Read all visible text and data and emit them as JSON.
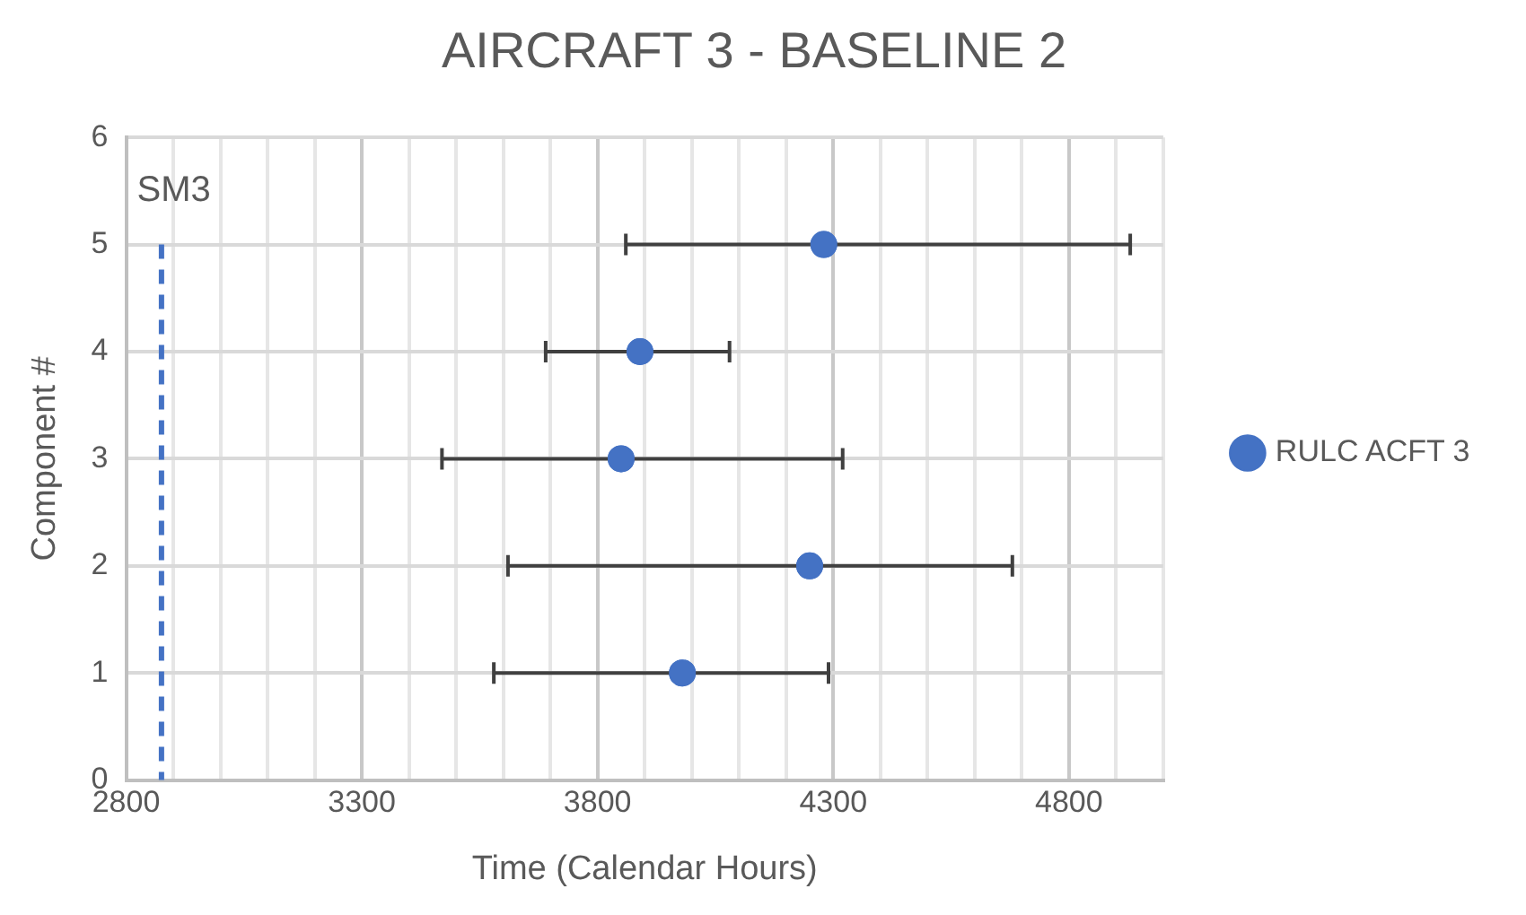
{
  "chart_data": {
    "type": "scatter",
    "title": "AIRCRAFT 3 - BASELINE 2",
    "xlabel": "Time (Calendar Hours)",
    "ylabel": "Component #",
    "series": [
      {
        "name": "RULC ACFT 3",
        "color": "#4472c4",
        "x": [
          3980,
          4250,
          3850,
          3890,
          4280
        ],
        "values": [
          1,
          2,
          3,
          4,
          5
        ],
        "xerrors": [
          [
            3580,
            4290
          ],
          [
            3610,
            4680
          ],
          [
            3470,
            4320
          ],
          [
            3690,
            4080
          ],
          [
            3860,
            4930
          ]
        ]
      }
    ],
    "xlim": [
      2800,
      5000
    ],
    "xticks": [
      2800,
      {
        "value": 2900,
        "label": null
      },
      {
        "value": 3000,
        "label": null
      },
      {
        "value": 3100,
        "label": null
      },
      {
        "value": 3200,
        "label": null
      },
      3300,
      {
        "value": 3400,
        "label": null
      },
      {
        "value": 3500,
        "label": null
      },
      {
        "value": 3600,
        "label": null
      },
      {
        "value": 3700,
        "label": null
      },
      3800,
      {
        "value": 3900,
        "label": null
      },
      {
        "value": 4000,
        "label": null
      },
      {
        "value": 4100,
        "label": null
      },
      {
        "value": 4200,
        "label": null
      },
      4300,
      {
        "value": 4400,
        "label": null
      },
      {
        "value": 4500,
        "label": null
      },
      {
        "value": 4600,
        "label": null
      },
      {
        "value": 4700,
        "label": null
      },
      4800,
      {
        "value": 4900,
        "label": null
      },
      {
        "value": 5000,
        "label": null
      }
    ],
    "ylim": [
      0,
      6
    ],
    "yticks": [
      0,
      1,
      2,
      3,
      4,
      5,
      6
    ],
    "ref_lines": [
      {
        "axis": "x",
        "value": 2875,
        "label": "SM3",
        "color": "#4472c4",
        "line_style": "dashed"
      }
    ],
    "grid": true,
    "legend": "right",
    "marker": "circle"
  }
}
